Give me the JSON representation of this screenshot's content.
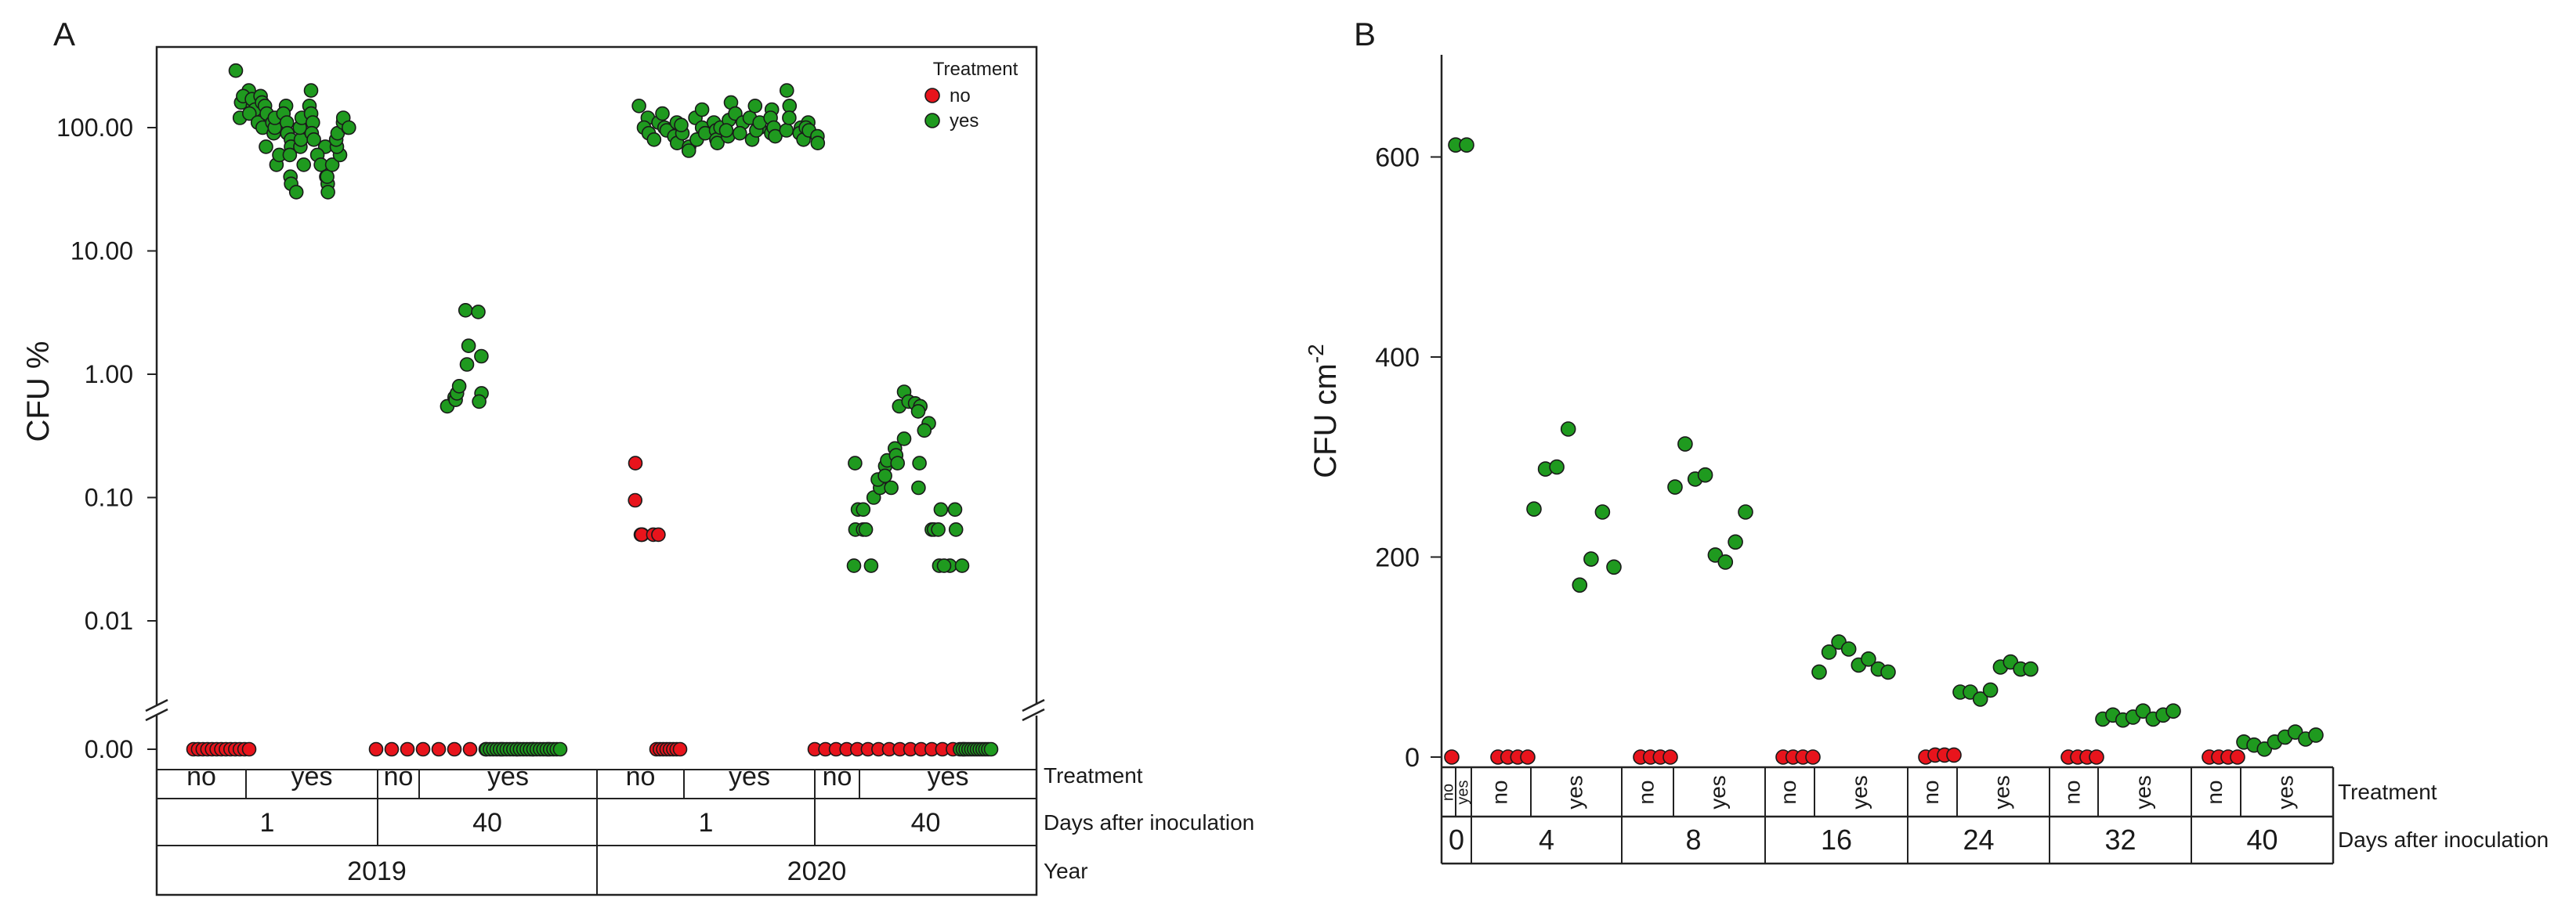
{
  "figure": {
    "panel_a_label": "A",
    "panel_b_label": "B"
  },
  "colors": {
    "no": "#e8141c",
    "yes": "#1f9a1f",
    "outline": "#1a1a1a"
  },
  "chart_data": [
    {
      "panel": "A",
      "type": "scatter",
      "title": "",
      "ylabel": "CFU %",
      "yscale": "log-with-break",
      "yticks": [
        "0.00",
        "0.01",
        "0.10",
        "1.00",
        "10.00",
        "100.00"
      ],
      "legend": {
        "title": "Treatment",
        "entries": [
          "no",
          "yes"
        ],
        "location": "top-right"
      },
      "axis_rows": {
        "treatment_label": "Treatment",
        "treatment": [
          "no",
          "yes",
          "no",
          "yes",
          "no",
          "yes",
          "no",
          "yes"
        ],
        "days_label": "Days after inoculation",
        "days": [
          "1",
          "40",
          "1",
          "40"
        ],
        "year_label": "Year",
        "years": [
          "2019",
          "2020"
        ]
      },
      "groups": [
        {
          "year": "2019",
          "day": "1",
          "treatment": "no",
          "values": [
            0,
            0,
            0,
            0,
            0,
            0,
            0,
            0,
            0,
            0,
            0,
            0,
            0
          ]
        },
        {
          "year": "2019",
          "day": "1",
          "treatment": "yes",
          "values": [
            120,
            290,
            160,
            200,
            180,
            150,
            170,
            140,
            130,
            110,
            100,
            180,
            160,
            150,
            130,
            110,
            90,
            70,
            50,
            60,
            100,
            120,
            150,
            130,
            110,
            90,
            80,
            70,
            60,
            40,
            35,
            30,
            50,
            70,
            80,
            100,
            120,
            150,
            200,
            130,
            110,
            90,
            80,
            70,
            60,
            50,
            40,
            35,
            30,
            40,
            50,
            60,
            70,
            80,
            90,
            100,
            110,
            120,
            100
          ]
        },
        {
          "year": "2019",
          "day": "40",
          "treatment": "no",
          "values": [
            0,
            0,
            0,
            0,
            0,
            0,
            0,
            0,
            0,
            0,
            0,
            0
          ]
        },
        {
          "year": "2019",
          "day": "40",
          "treatment": "yes",
          "values": [
            0.55,
            0.65,
            0.62,
            0.7,
            0.8,
            1.2,
            1.7,
            3.3,
            3.2,
            1.4,
            0.7,
            0.6,
            0,
            0,
            0,
            0,
            0,
            0,
            0,
            0,
            0,
            0,
            0,
            0,
            0,
            0,
            0,
            0,
            0,
            0,
            0,
            0,
            0,
            0,
            0
          ]
        },
        {
          "year": "2020",
          "day": "1",
          "treatment": "no",
          "values": [
            0.19,
            0.095,
            0.05,
            0.05,
            0.05,
            0.05,
            0.05,
            0,
            0,
            0,
            0,
            0,
            0,
            0,
            0
          ]
        },
        {
          "year": "2020",
          "day": "1",
          "treatment": "yes",
          "values": [
            150,
            120,
            100,
            90,
            110,
            80,
            130,
            100,
            95,
            85,
            75,
            110,
            90,
            105,
            70,
            65,
            80,
            120,
            100,
            90,
            140,
            110,
            95,
            80,
            75,
            100,
            115,
            85,
            95,
            160,
            130,
            110,
            90,
            80,
            120,
            100,
            95,
            150,
            110,
            90,
            140,
            120,
            100,
            85,
            95,
            200,
            150,
            120,
            100,
            90,
            80,
            110,
            100,
            95,
            85,
            75
          ]
        },
        {
          "year": "2020",
          "day": "40",
          "treatment": "no",
          "values": [
            0,
            0,
            0,
            0,
            0,
            0,
            0,
            0,
            0,
            0,
            0,
            0,
            0,
            0,
            0
          ]
        },
        {
          "year": "2020",
          "day": "40",
          "treatment": "yes",
          "values": [
            0.19,
            0.08,
            0.055,
            0.028,
            0.055,
            0.08,
            0.055,
            0.028,
            0.1,
            0.12,
            0.14,
            0.18,
            0.15,
            0.12,
            0.2,
            0.25,
            0.22,
            0.19,
            0.3,
            0.55,
            0.72,
            0.6,
            0.58,
            0.55,
            0.5,
            0.19,
            0.12,
            0.4,
            0.35,
            0.055,
            0.028,
            0.055,
            0.08,
            0.055,
            0.028,
            0.028,
            0.08,
            0.055,
            0.028,
            0,
            0,
            0,
            0,
            0,
            0,
            0,
            0,
            0,
            0,
            0,
            0
          ]
        }
      ]
    },
    {
      "panel": "B",
      "type": "scatter",
      "title": "",
      "ylabel": "CFU cm",
      "ylabel_superscript": "-2",
      "ylim": [
        0,
        700
      ],
      "yticks": [
        0,
        200,
        400,
        600
      ],
      "axis_rows": {
        "treatment_label": "Treatment",
        "treatment": [
          "no",
          "yes",
          "no",
          "yes",
          "no",
          "yes",
          "no",
          "yes",
          "no",
          "yes",
          "no",
          "yes",
          "no",
          "yes"
        ],
        "days_label": "Days after inoculation",
        "days": [
          "0",
          "4",
          "8",
          "16",
          "24",
          "32",
          "40"
        ]
      },
      "groups": [
        {
          "day": "0",
          "treatment": "no",
          "values": [
            0
          ]
        },
        {
          "day": "0",
          "treatment": "yes",
          "values": [
            612,
            612
          ]
        },
        {
          "day": "4",
          "treatment": "no",
          "values": [
            0,
            0,
            0,
            0
          ]
        },
        {
          "day": "4",
          "treatment": "yes",
          "values": [
            248,
            288,
            290,
            328,
            172,
            198,
            245,
            190
          ]
        },
        {
          "day": "8",
          "treatment": "no",
          "values": [
            0,
            0,
            0,
            0
          ]
        },
        {
          "day": "8",
          "treatment": "yes",
          "values": [
            270,
            313,
            278,
            282,
            202,
            195,
            215,
            245
          ]
        },
        {
          "day": "16",
          "treatment": "no",
          "values": [
            0,
            0,
            0,
            0
          ]
        },
        {
          "day": "16",
          "treatment": "yes",
          "values": [
            85,
            105,
            115,
            108,
            92,
            98,
            88,
            85
          ]
        },
        {
          "day": "24",
          "treatment": "no",
          "values": [
            0,
            2,
            2,
            2
          ]
        },
        {
          "day": "24",
          "treatment": "yes",
          "values": [
            65,
            65,
            58,
            67,
            90,
            95,
            88,
            88
          ]
        },
        {
          "day": "32",
          "treatment": "no",
          "values": [
            0,
            0,
            0,
            0
          ]
        },
        {
          "day": "32",
          "treatment": "yes",
          "values": [
            38,
            42,
            37,
            40,
            46,
            38,
            42,
            46
          ]
        },
        {
          "day": "40",
          "treatment": "no",
          "values": [
            0,
            0,
            0,
            0
          ]
        },
        {
          "day": "40",
          "treatment": "yes",
          "values": [
            15,
            12,
            8,
            15,
            20,
            25,
            18,
            22
          ]
        }
      ]
    }
  ]
}
